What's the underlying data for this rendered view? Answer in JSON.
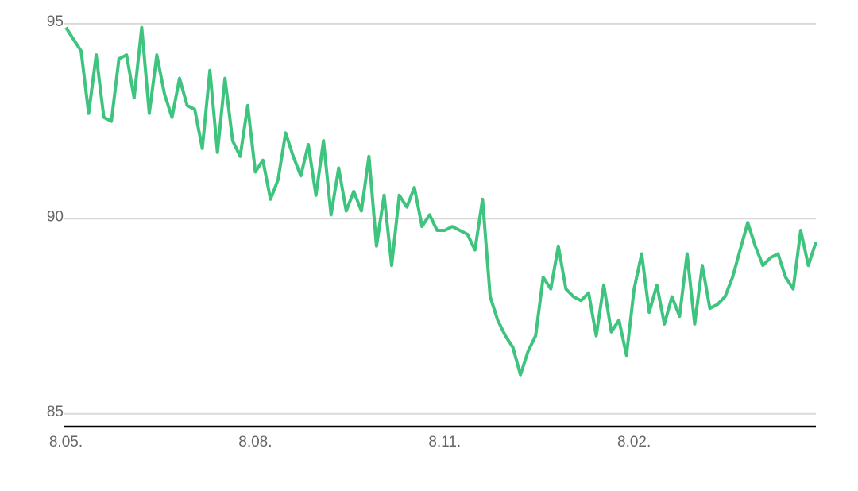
{
  "chart_data": {
    "type": "line",
    "categories": [
      "8.05.",
      null,
      null,
      null,
      null,
      null,
      null,
      null,
      null,
      null,
      null,
      null,
      null,
      null,
      null,
      null,
      null,
      null,
      null,
      null,
      null,
      null,
      null,
      null,
      null,
      "8.08.",
      null,
      null,
      null,
      null,
      null,
      null,
      null,
      null,
      null,
      null,
      null,
      null,
      null,
      null,
      null,
      null,
      null,
      null,
      null,
      null,
      null,
      null,
      null,
      null,
      "8.11.",
      null,
      null,
      null,
      null,
      null,
      null,
      null,
      null,
      null,
      null,
      null,
      null,
      null,
      null,
      null,
      null,
      null,
      null,
      null,
      null,
      null,
      null,
      null,
      null,
      "8.02.",
      null,
      null,
      null,
      null,
      null,
      null,
      null,
      null,
      null,
      null,
      null,
      null,
      null,
      null,
      null,
      null,
      null,
      null,
      null,
      null,
      null,
      null,
      null,
      null
    ],
    "series": [
      {
        "color": "#3ec47e",
        "values": [
          94.9,
          94.6,
          94.3,
          92.7,
          94.2,
          92.6,
          92.5,
          94.1,
          94.2,
          93.1,
          94.9,
          92.7,
          94.2,
          93.2,
          92.6,
          93.6,
          92.9,
          92.8,
          91.8,
          93.8,
          91.7,
          93.6,
          92.0,
          91.6,
          92.9,
          91.2,
          91.5,
          90.5,
          91.0,
          92.2,
          91.6,
          91.1,
          91.9,
          90.6,
          92.0,
          90.1,
          91.3,
          90.2,
          90.7,
          90.2,
          91.6,
          89.3,
          90.6,
          88.8,
          90.6,
          90.3,
          90.8,
          89.8,
          90.1,
          89.7,
          89.7,
          89.8,
          89.7,
          89.6,
          89.2,
          90.5,
          88.0,
          87.4,
          87.0,
          86.7,
          86.0,
          86.6,
          87.0,
          88.5,
          88.2,
          89.3,
          88.2,
          88.0,
          87.9,
          88.1,
          87.0,
          88.3,
          87.1,
          87.4,
          86.5,
          88.2,
          89.1,
          87.6,
          88.3,
          87.3,
          88.0,
          87.5,
          89.1,
          87.3,
          88.8,
          87.7,
          87.8,
          88.0,
          88.5,
          89.2,
          89.9,
          89.3,
          88.8,
          89.0,
          89.1,
          88.5,
          88.2,
          89.7,
          88.8,
          89.4
        ]
      }
    ],
    "ylim": [
      84.67,
      95.2
    ],
    "yticks": [
      85,
      90,
      95
    ],
    "grid": true
  }
}
